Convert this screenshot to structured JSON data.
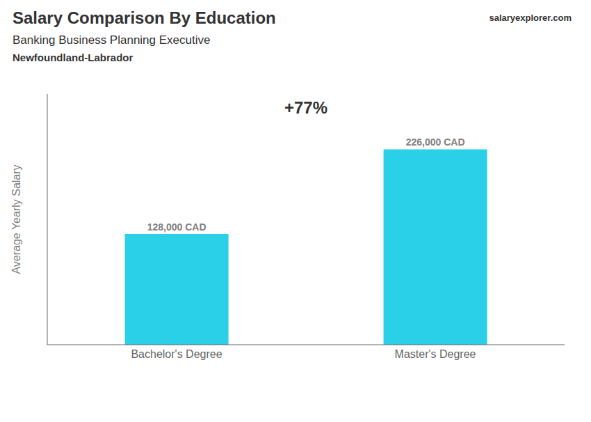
{
  "chart_data": {
    "type": "bar",
    "title": "Salary Comparison By Education",
    "subtitle": [
      "Banking Business Planning Executive",
      "Newfoundland-Labrador"
    ],
    "annotations": [
      "salaryexplorer.com",
      "+77%"
    ],
    "ylabel": "Average Yearly Salary",
    "categories": [
      "Bachelor's Degree",
      "Master's Degree"
    ],
    "values": [
      128000,
      226000
    ],
    "value_labels": [
      "128,000 CAD",
      "226,000 CAD"
    ],
    "data_labels": true,
    "color": "#29d0e8",
    "ylim": [
      0,
      290000
    ],
    "tick_labels": "x",
    "grid": false
  }
}
